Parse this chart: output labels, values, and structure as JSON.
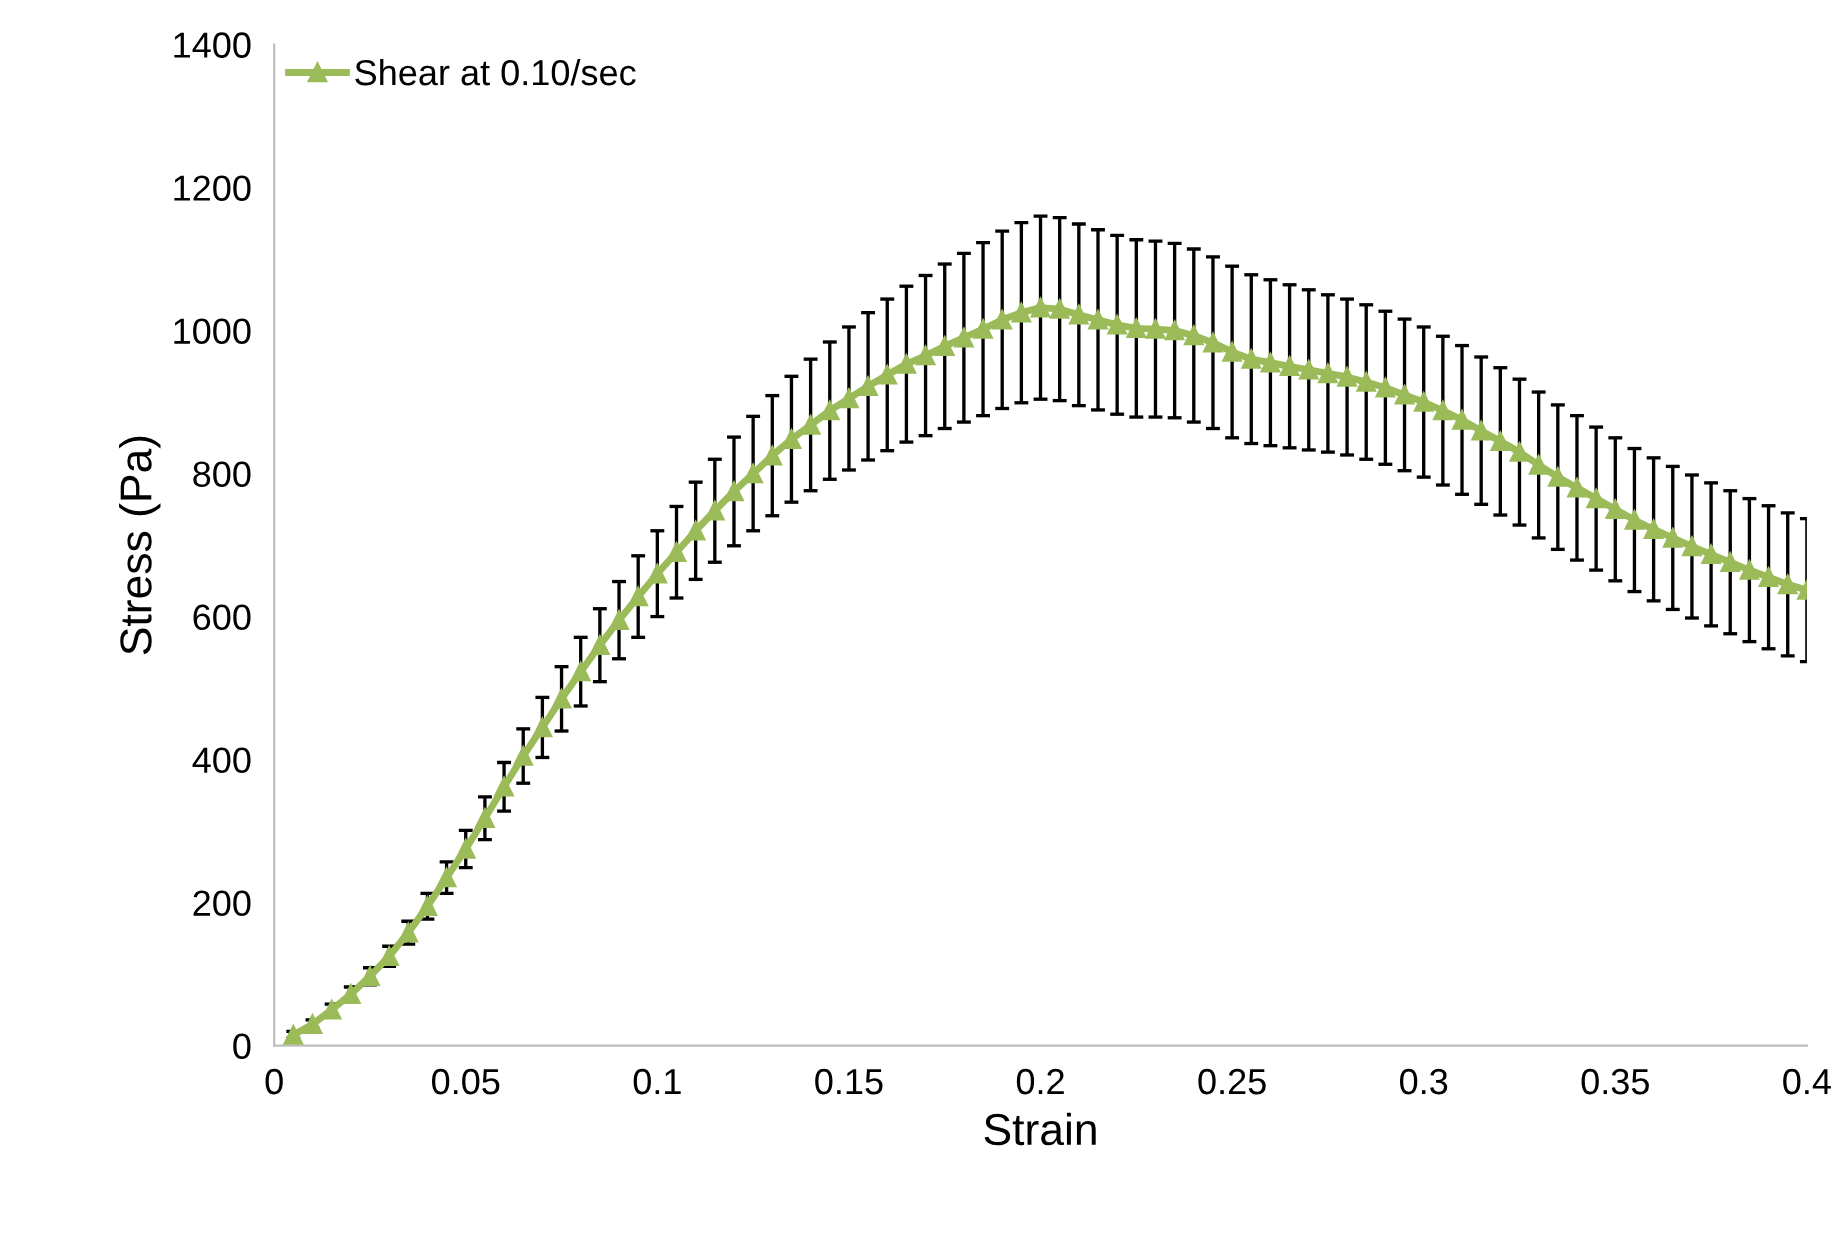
{
  "chart_data": {
    "type": "line",
    "xlabel": "Strain",
    "ylabel": "Stress (Pa)",
    "xlim": [
      0,
      0.4
    ],
    "xticks": [
      0,
      0.05,
      0.1,
      0.15,
      0.2,
      0.25,
      0.3,
      0.35,
      0.4
    ],
    "ylim": [
      0,
      1400
    ],
    "yticks": [
      0,
      200,
      400,
      600,
      800,
      1000,
      1200,
      1400
    ],
    "grid": false,
    "legend": "top left",
    "marker": "triangle",
    "line_style": "solid",
    "x": [
      0.005,
      0.01,
      0.015,
      0.02,
      0.025,
      0.03,
      0.035,
      0.04,
      0.045,
      0.05,
      0.055,
      0.06,
      0.065,
      0.07,
      0.075,
      0.08,
      0.085,
      0.09,
      0.095,
      0.1,
      0.105,
      0.11,
      0.115,
      0.12,
      0.125,
      0.13,
      0.135,
      0.14,
      0.145,
      0.15,
      0.155,
      0.16,
      0.165,
      0.17,
      0.175,
      0.18,
      0.185,
      0.19,
      0.195,
      0.2,
      0.205,
      0.21,
      0.215,
      0.22,
      0.225,
      0.23,
      0.235,
      0.24,
      0.245,
      0.25,
      0.255,
      0.26,
      0.265,
      0.27,
      0.275,
      0.28,
      0.285,
      0.29,
      0.295,
      0.3,
      0.305,
      0.31,
      0.315,
      0.32,
      0.325,
      0.33,
      0.335,
      0.34,
      0.345,
      0.35,
      0.355,
      0.36,
      0.365,
      0.37,
      0.375,
      0.38,
      0.385,
      0.39,
      0.395,
      0.4
    ],
    "series": [
      {
        "name": "Shear at 0.10/sec",
        "color": "#9bbb59",
        "values": [
          15,
          30,
          50,
          72,
          97,
          125,
          158,
          195,
          235,
          275,
          318,
          362,
          405,
          445,
          485,
          523,
          560,
          595,
          628,
          660,
          690,
          720,
          748,
          775,
          800,
          825,
          848,
          868,
          888,
          905,
          922,
          938,
          953,
          965,
          978,
          990,
          1002,
          1015,
          1025,
          1032,
          1030,
          1022,
          1015,
          1008,
          1003,
          1002,
          1000,
          993,
          983,
          970,
          960,
          955,
          950,
          945,
          940,
          935,
          928,
          920,
          910,
          900,
          888,
          875,
          860,
          845,
          830,
          812,
          795,
          780,
          765,
          750,
          735,
          722,
          710,
          698,
          687,
          676,
          665,
          655,
          645,
          637
        ],
        "errors": [
          5,
          6,
          8,
          10,
          12,
          14,
          16,
          18,
          22,
          26,
          30,
          34,
          38,
          42,
          45,
          48,
          51,
          54,
          57,
          60,
          64,
          68,
          72,
          76,
          80,
          84,
          88,
          92,
          96,
          100,
          103,
          106,
          109,
          112,
          115,
          118,
          121,
          124,
          126,
          128,
          128,
          127,
          126,
          125,
          124,
          123,
          122,
          121,
          120,
          120,
          118,
          116,
          114,
          112,
          110,
          109,
          108,
          107,
          106,
          105,
          104,
          104,
          103,
          103,
          102,
          102,
          101,
          101,
          100,
          100,
          100,
          100,
          100,
          100,
          100,
          100,
          100,
          100,
          100,
          100
        ]
      }
    ]
  }
}
